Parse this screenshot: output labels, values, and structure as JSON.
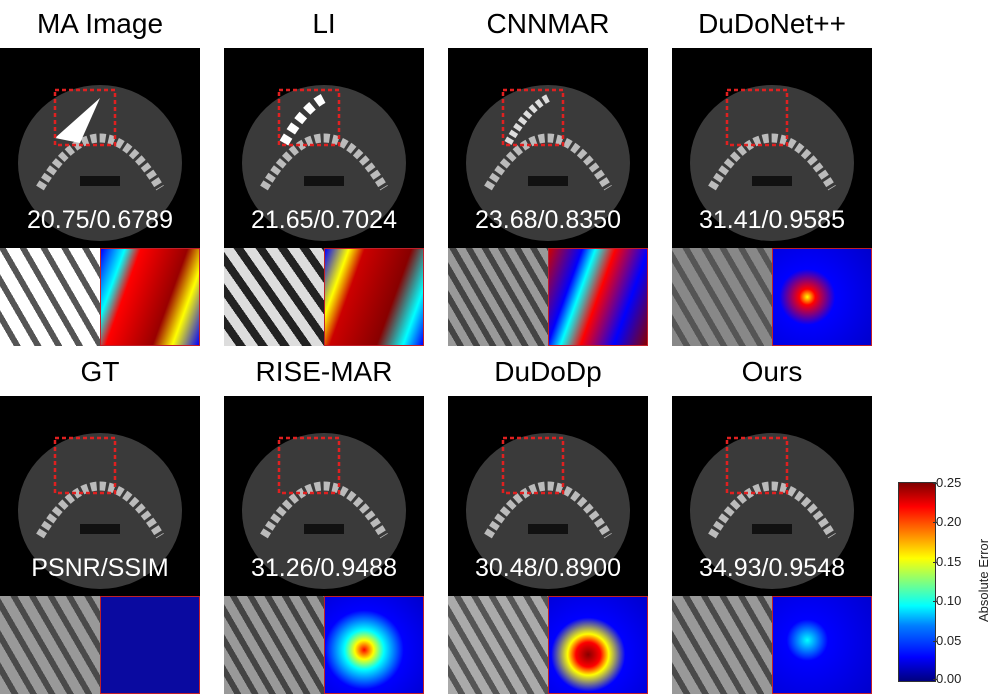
{
  "panels": [
    {
      "title": "MA Image",
      "metric": "20.75/0.6789"
    },
    {
      "title": "LI",
      "metric": "21.65/0.7024"
    },
    {
      "title": "CNNMAR",
      "metric": "23.68/0.8350"
    },
    {
      "title": "DuDoNet++",
      "metric": "31.41/0.9585"
    },
    {
      "title": "GT",
      "metric": "PSNR/SSIM"
    },
    {
      "title": "RISE-MAR",
      "metric": "31.26/0.9488"
    },
    {
      "title": "DuDoDp",
      "metric": "30.48/0.8900"
    },
    {
      "title": "Ours",
      "metric": "34.93/0.9548"
    }
  ],
  "colorbar": {
    "label": "Absolute Error",
    "ticks": [
      "0.25",
      "0.20",
      "0.15",
      "0.10",
      "0.05",
      "0.00"
    ],
    "colormap": "jet"
  },
  "colors": {
    "zoom_box": "#e02020",
    "connector": "#c0202a"
  }
}
